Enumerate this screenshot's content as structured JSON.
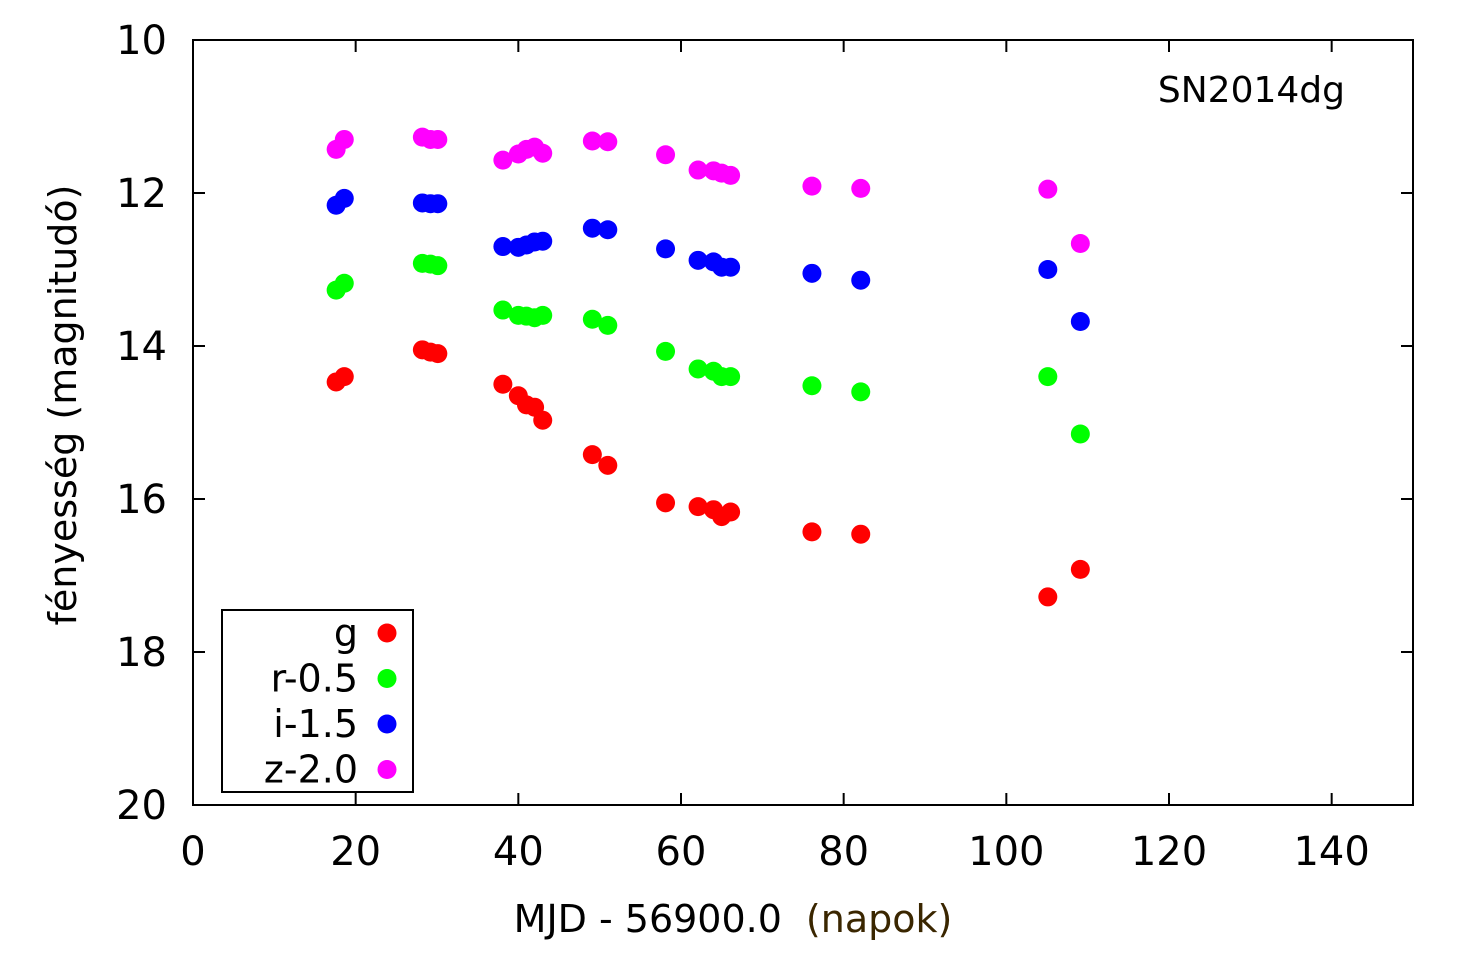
{
  "chart_data": {
    "type": "scatter",
    "annotation": "SN2014dg",
    "xlabel": "MJD - 56900.0",
    "xlabel_suffix": "(napok)",
    "ylabel": "fényesség (magnitudó)",
    "xlim": [
      0,
      150
    ],
    "ylim": [
      10,
      20
    ],
    "y_inverted": true,
    "xticks": [
      0,
      20,
      40,
      60,
      80,
      100,
      120,
      140
    ],
    "yticks": [
      10,
      12,
      14,
      16,
      18,
      20
    ],
    "grid": false,
    "legend_position": "bottom-left",
    "series": [
      {
        "name": "g",
        "color": "#ff0000",
        "points": [
          [
            17.6,
            14.47
          ],
          [
            18.6,
            14.4
          ],
          [
            28.2,
            14.05
          ],
          [
            29.2,
            14.08
          ],
          [
            30.1,
            14.1
          ],
          [
            38.1,
            14.5
          ],
          [
            40.0,
            14.65
          ],
          [
            41.0,
            14.77
          ],
          [
            42.0,
            14.8
          ],
          [
            43.0,
            14.97
          ],
          [
            49.1,
            15.42
          ],
          [
            51.0,
            15.56
          ],
          [
            58.1,
            16.05
          ],
          [
            62.1,
            16.1
          ],
          [
            64.0,
            16.14
          ],
          [
            65.0,
            16.23
          ],
          [
            66.1,
            16.17
          ],
          [
            76.1,
            16.43
          ],
          [
            82.1,
            16.46
          ],
          [
            105.1,
            17.28
          ],
          [
            109.1,
            16.92
          ]
        ]
      },
      {
        "name": "r-0.5",
        "color": "#00ff00",
        "points": [
          [
            17.6,
            13.27
          ],
          [
            18.6,
            13.18
          ],
          [
            28.2,
            12.92
          ],
          [
            29.2,
            12.93
          ],
          [
            30.1,
            12.95
          ],
          [
            38.1,
            13.53
          ],
          [
            40.0,
            13.6
          ],
          [
            41.0,
            13.61
          ],
          [
            42.0,
            13.63
          ],
          [
            43.0,
            13.6
          ],
          [
            49.1,
            13.65
          ],
          [
            51.0,
            13.73
          ],
          [
            58.1,
            14.07
          ],
          [
            62.1,
            14.3
          ],
          [
            64.0,
            14.33
          ],
          [
            65.0,
            14.4
          ],
          [
            66.1,
            14.4
          ],
          [
            76.1,
            14.52
          ],
          [
            82.1,
            14.6
          ],
          [
            105.1,
            14.4
          ],
          [
            109.1,
            15.15
          ]
        ]
      },
      {
        "name": "i-1.5",
        "color": "#0000ff",
        "points": [
          [
            17.6,
            12.16
          ],
          [
            18.6,
            12.07
          ],
          [
            28.2,
            12.13
          ],
          [
            29.2,
            12.14
          ],
          [
            30.1,
            12.14
          ],
          [
            38.1,
            12.7
          ],
          [
            40.0,
            12.71
          ],
          [
            41.0,
            12.68
          ],
          [
            42.0,
            12.64
          ],
          [
            43.0,
            12.63
          ],
          [
            49.1,
            12.46
          ],
          [
            51.0,
            12.48
          ],
          [
            58.1,
            12.73
          ],
          [
            62.1,
            12.88
          ],
          [
            64.0,
            12.9
          ],
          [
            65.0,
            12.97
          ],
          [
            66.1,
            12.97
          ],
          [
            76.1,
            13.05
          ],
          [
            82.1,
            13.14
          ],
          [
            105.1,
            13.0
          ],
          [
            109.1,
            13.68
          ]
        ]
      },
      {
        "name": "z-2.0",
        "color": "#ff00ff",
        "points": [
          [
            17.6,
            11.43
          ],
          [
            18.6,
            11.3
          ],
          [
            28.2,
            11.27
          ],
          [
            29.2,
            11.3
          ],
          [
            30.1,
            11.3
          ],
          [
            38.1,
            11.57
          ],
          [
            40.0,
            11.49
          ],
          [
            41.0,
            11.43
          ],
          [
            42.0,
            11.4
          ],
          [
            43.0,
            11.48
          ],
          [
            49.1,
            11.32
          ],
          [
            51.0,
            11.33
          ],
          [
            58.1,
            11.5
          ],
          [
            62.1,
            11.7
          ],
          [
            64.0,
            11.71
          ],
          [
            65.0,
            11.74
          ],
          [
            66.1,
            11.77
          ],
          [
            76.1,
            11.91
          ],
          [
            82.1,
            11.94
          ],
          [
            105.1,
            11.95
          ],
          [
            109.1,
            12.66
          ]
        ]
      }
    ]
  }
}
